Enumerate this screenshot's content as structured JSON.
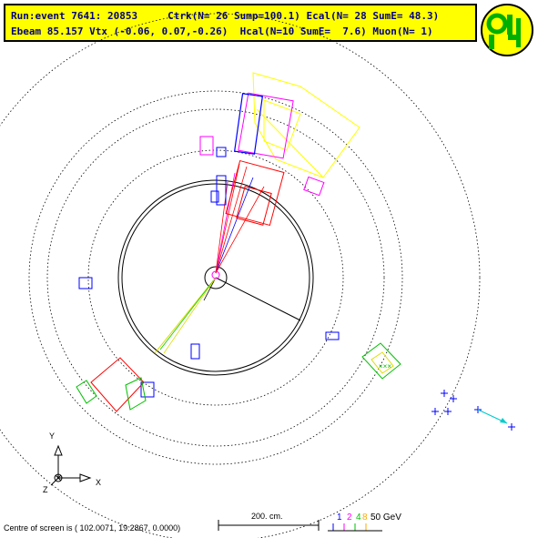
{
  "header": {
    "line1": "Run:event 7641: 20853     Ctrk(N= 26 Sump=100.1) Ecal(N= 28 SumE= 48.3)",
    "line2": "Ebeam 85.157 Vtx (-0.06, 0.07,-0.26)  Hcal(N=10 SumE=  7.6) Muon(N= 1)"
  },
  "logo": {
    "text": "OPAL",
    "colors": {
      "fill": "#ffff00",
      "ring": "#00b000"
    }
  },
  "scale": {
    "label": "200. cm."
  },
  "legend": {
    "items": [
      "1",
      "2",
      "4",
      "8"
    ],
    "unit": "50 GeV",
    "colors": [
      "#0000ff",
      "#ff00ff",
      "#00c000",
      "#ffaa00"
    ]
  },
  "axes": {
    "y": "Y",
    "x": "X",
    "z": "Z"
  },
  "footer": {
    "text": "Centre of screen is ( 102.0071, 19.2867, 0.0000)"
  },
  "colors": {
    "text": "#000080",
    "header_bg": "#ffff00",
    "track_red": "#ff0000",
    "ecal_yellow": "#ffff00",
    "muon_cyan": "#00cccc"
  }
}
